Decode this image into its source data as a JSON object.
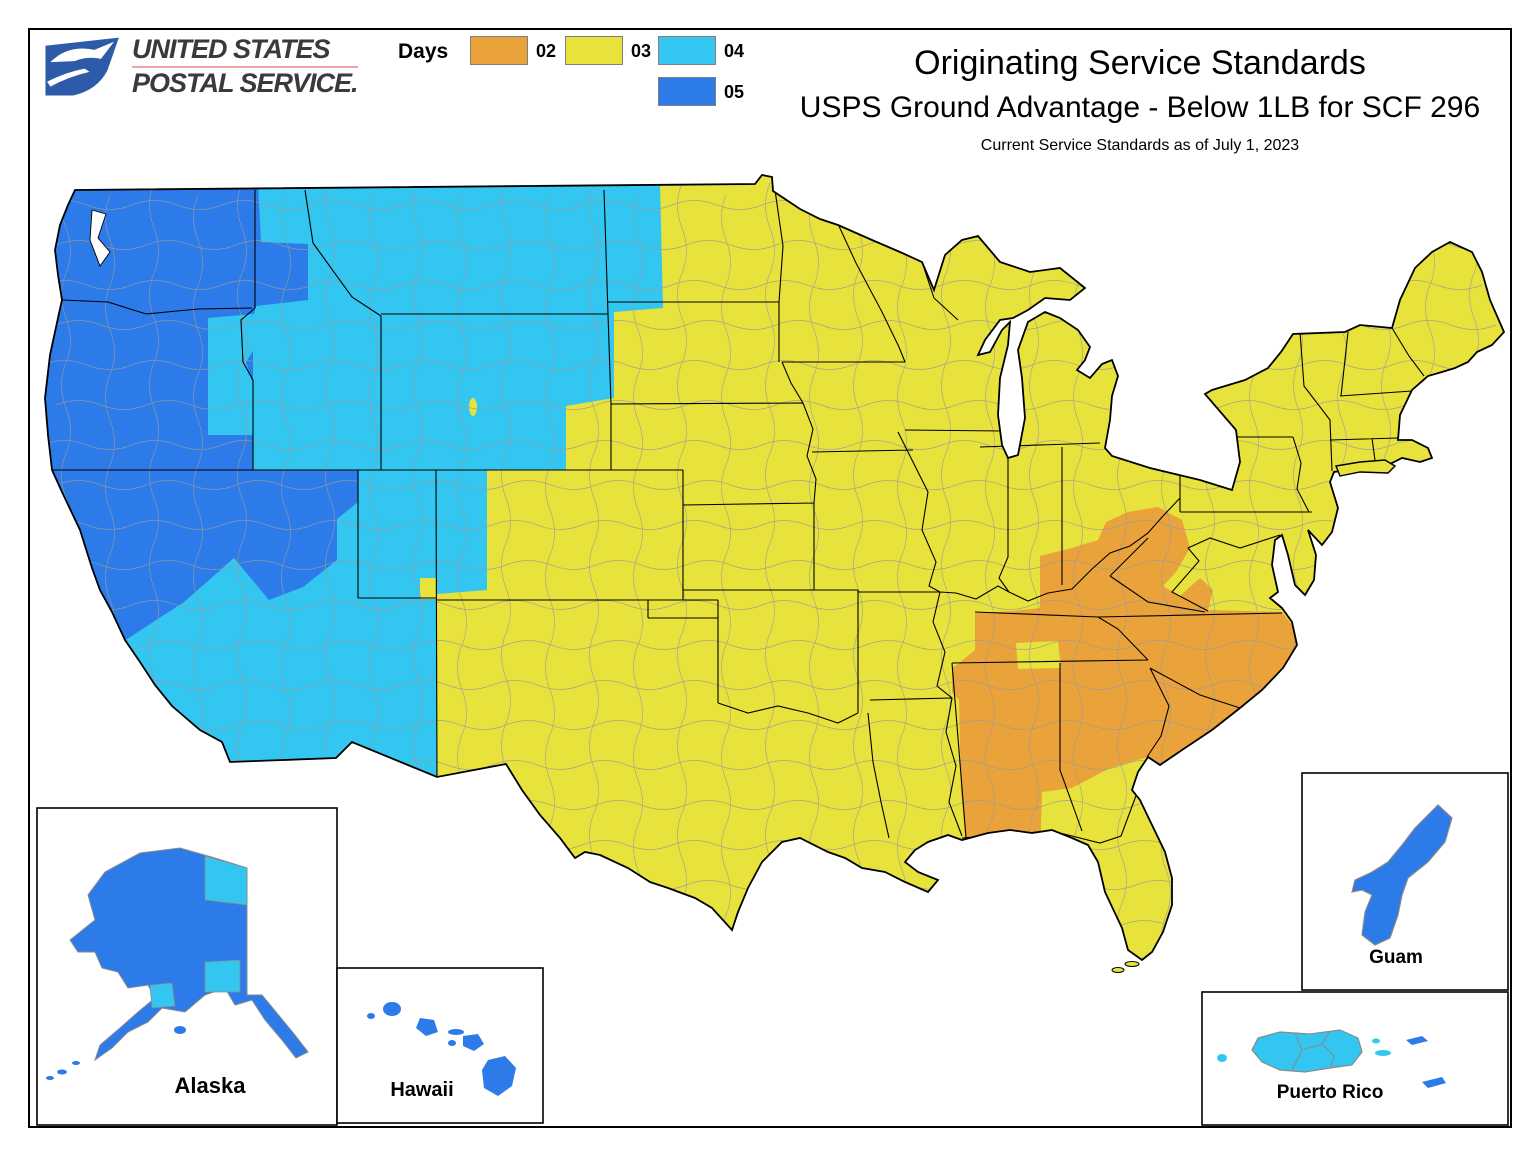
{
  "header": {
    "logo": {
      "line1": "UNITED STATES",
      "line2": "POSTAL SERVICE.",
      "eagle_blue": "#2d5ba9",
      "rule_red": "#f0a3ab",
      "text_color": "#3a3a3c"
    },
    "title": "Originating Service Standards",
    "subtitle": "USPS Ground Advantage - Below 1LB for SCF 296",
    "note": "Current Service Standards as of July 1, 2023"
  },
  "legend": {
    "label": "Days",
    "items": [
      {
        "days": "02",
        "color": "#EAA23B"
      },
      {
        "days": "03",
        "color": "#E7E33C"
      },
      {
        "days": "04",
        "color": "#33C6F0"
      },
      {
        "days": "05",
        "color": "#2C7BE8"
      }
    ]
  },
  "map": {
    "line_colors": {
      "zip_boundary": "#9b9b9b",
      "state_boundary": "#000000",
      "coast": "#000000"
    },
    "zones": [
      {
        "name": "contiguous-us-base",
        "days": "03"
      },
      {
        "name": "mountain-west",
        "days": "04"
      },
      {
        "name": "pacific-west",
        "days": "05"
      },
      {
        "name": "southeast-scf296",
        "days": "02"
      }
    ],
    "insets": [
      {
        "label": "Alaska",
        "days": "05"
      },
      {
        "label": "Hawaii",
        "days": "05"
      },
      {
        "label": "Guam",
        "days": "05"
      },
      {
        "label": "Puerto Rico",
        "days": "04"
      }
    ]
  }
}
